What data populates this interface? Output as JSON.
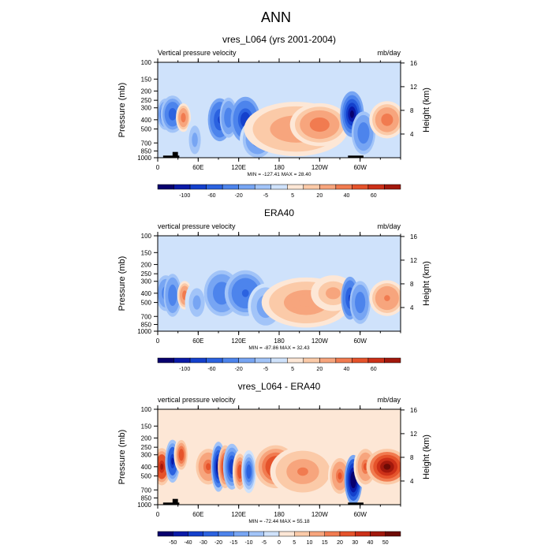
{
  "figure": {
    "title": "ANN"
  },
  "chart_data": [
    {
      "type": "heatmap",
      "title": "vres_L064 (yrs 2001-2004)",
      "left_label": "Vertical pressure velocity",
      "right_label": "mb/day",
      "ylabel": "Pressure (mb)",
      "y2label": "Height (km)",
      "xticks": [
        "0",
        "60E",
        "120E",
        "180",
        "120W",
        "60W"
      ],
      "xlim": [
        0,
        360
      ],
      "yticks": [
        100,
        150,
        200,
        250,
        300,
        400,
        500,
        700,
        850,
        1000
      ],
      "y2ticks": [
        4,
        8,
        12,
        16
      ],
      "stats": "MIN = -127.41  MAX =  28.40",
      "colorbar_labels": [
        "-100",
        "-60",
        "-20",
        "-5",
        "5",
        "20",
        "40",
        "60"
      ],
      "colorbar_levels": [
        -120,
        -100,
        -80,
        -60,
        -40,
        -20,
        -10,
        -5,
        0,
        5,
        10,
        20,
        30,
        40,
        50,
        60
      ],
      "features": [
        {
          "lon": 12,
          "p": 350,
          "value": -45,
          "lon_width": 6,
          "p_width": 220
        },
        {
          "lon": 22,
          "p": 350,
          "value": -60,
          "lon_width": 8,
          "p_width": 260
        },
        {
          "lon": 38,
          "p": 380,
          "value": 25,
          "lon_width": 5,
          "p_width": 200
        },
        {
          "lon": 55,
          "p": 650,
          "value": -15,
          "lon_width": 6,
          "p_width": 300
        },
        {
          "lon": 92,
          "p": 400,
          "value": -70,
          "lon_width": 8,
          "p_width": 300
        },
        {
          "lon": 105,
          "p": 380,
          "value": -40,
          "lon_width": 6,
          "p_width": 280
        },
        {
          "lon": 130,
          "p": 400,
          "value": -75,
          "lon_width": 10,
          "p_width": 320
        },
        {
          "lon": 148,
          "p": 650,
          "value": -25,
          "lon_width": 12,
          "p_width": 300
        },
        {
          "lon": 205,
          "p": 500,
          "value": 18,
          "lon_width": 35,
          "p_width": 380
        },
        {
          "lon": 240,
          "p": 450,
          "value": 28,
          "lon_width": 20,
          "p_width": 300
        },
        {
          "lon": 288,
          "p": 350,
          "value": -120,
          "lon_width": 8,
          "p_width": 320
        },
        {
          "lon": 305,
          "p": 550,
          "value": -40,
          "lon_width": 8,
          "p_width": 300
        },
        {
          "lon": 340,
          "p": 400,
          "value": 25,
          "lon_width": 12,
          "p_width": 260
        }
      ]
    },
    {
      "type": "heatmap",
      "title": "ERA40",
      "left_label": "vertical pressure velocity",
      "right_label": "mb/day",
      "ylabel": "Pressure (mb)",
      "y2label": "Height (km)",
      "xticks": [
        "0",
        "60E",
        "120E",
        "180",
        "120W",
        "60W"
      ],
      "xlim": [
        0,
        360
      ],
      "yticks": [
        100,
        150,
        200,
        250,
        300,
        400,
        500,
        700,
        850,
        1000
      ],
      "y2ticks": [
        4,
        8,
        12,
        16
      ],
      "stats": "MIN = -87.86  MAX =  32.43",
      "colorbar_labels": [
        "-100",
        "-60",
        "-20",
        "-5",
        "5",
        "20",
        "40",
        "60"
      ],
      "colorbar_levels": [
        -120,
        -100,
        -80,
        -60,
        -40,
        -20,
        -10,
        -5,
        0,
        5,
        10,
        20,
        30,
        40,
        50,
        60
      ],
      "features": [
        {
          "lon": 12,
          "p": 400,
          "value": -30,
          "lon_width": 8,
          "p_width": 300
        },
        {
          "lon": 22,
          "p": 420,
          "value": -40,
          "lon_width": 6,
          "p_width": 300
        },
        {
          "lon": 40,
          "p": 420,
          "value": 28,
          "lon_width": 5,
          "p_width": 200
        },
        {
          "lon": 58,
          "p": 500,
          "value": -15,
          "lon_width": 8,
          "p_width": 300
        },
        {
          "lon": 95,
          "p": 400,
          "value": -40,
          "lon_width": 12,
          "p_width": 320
        },
        {
          "lon": 130,
          "p": 400,
          "value": -45,
          "lon_width": 14,
          "p_width": 320
        },
        {
          "lon": 160,
          "p": 550,
          "value": -20,
          "lon_width": 12,
          "p_width": 320
        },
        {
          "lon": 220,
          "p": 500,
          "value": 15,
          "lon_width": 30,
          "p_width": 350
        },
        {
          "lon": 260,
          "p": 400,
          "value": 12,
          "lon_width": 15,
          "p_width": 250
        },
        {
          "lon": 285,
          "p": 450,
          "value": -70,
          "lon_width": 6,
          "p_width": 300
        },
        {
          "lon": 300,
          "p": 500,
          "value": -40,
          "lon_width": 7,
          "p_width": 300
        },
        {
          "lon": 340,
          "p": 450,
          "value": 20,
          "lon_width": 12,
          "p_width": 250
        }
      ]
    },
    {
      "type": "heatmap",
      "title": "vres_L064 - ERA40",
      "left_label": "vertical pressure velocity",
      "right_label": "mb/day",
      "ylabel": "Pressure (mb)",
      "y2label": "Height (km)",
      "xticks": [
        "0",
        "60E",
        "120E",
        "180",
        "120W",
        "60W"
      ],
      "xlim": [
        0,
        360
      ],
      "yticks": [
        100,
        150,
        200,
        250,
        300,
        400,
        500,
        700,
        850,
        1000
      ],
      "y2ticks": [
        4,
        8,
        12,
        16
      ],
      "stats": "MIN = -72.44  MAX =  55.18",
      "colorbar_labels": [
        "-50",
        "-40",
        "-30",
        "-20",
        "-15",
        "-10",
        "-5",
        "0",
        "5",
        "10",
        "15",
        "20",
        "30",
        "40",
        "50"
      ],
      "colorbar_levels": [
        -60,
        -50,
        -40,
        -30,
        -20,
        -15,
        -10,
        -5,
        0,
        5,
        10,
        15,
        20,
        30,
        40,
        50,
        60
      ],
      "features": [
        {
          "lon": 6,
          "p": 400,
          "value": 40,
          "lon_width": 6,
          "p_width": 260
        },
        {
          "lon": 22,
          "p": 350,
          "value": -45,
          "lon_width": 5,
          "p_width": 300
        },
        {
          "lon": 35,
          "p": 300,
          "value": 25,
          "lon_width": 5,
          "p_width": 250
        },
        {
          "lon": 75,
          "p": 400,
          "value": 22,
          "lon_width": 10,
          "p_width": 300
        },
        {
          "lon": 90,
          "p": 400,
          "value": -55,
          "lon_width": 5,
          "p_width": 350
        },
        {
          "lon": 100,
          "p": 400,
          "value": 30,
          "lon_width": 5,
          "p_width": 300
        },
        {
          "lon": 110,
          "p": 400,
          "value": -40,
          "lon_width": 6,
          "p_width": 320
        },
        {
          "lon": 122,
          "p": 450,
          "value": 25,
          "lon_width": 5,
          "p_width": 300
        },
        {
          "lon": 135,
          "p": 450,
          "value": -30,
          "lon_width": 5,
          "p_width": 300
        },
        {
          "lon": 175,
          "p": 400,
          "value": 35,
          "lon_width": 14,
          "p_width": 300
        },
        {
          "lon": 215,
          "p": 450,
          "value": 15,
          "lon_width": 22,
          "p_width": 350
        },
        {
          "lon": 270,
          "p": 500,
          "value": 20,
          "lon_width": 8,
          "p_width": 300
        },
        {
          "lon": 290,
          "p": 550,
          "value": -70,
          "lon_width": 6,
          "p_width": 350
        },
        {
          "lon": 308,
          "p": 400,
          "value": 20,
          "lon_width": 8,
          "p_width": 300
        },
        {
          "lon": 340,
          "p": 400,
          "value": 50,
          "lon_width": 14,
          "p_width": 250
        }
      ]
    }
  ]
}
